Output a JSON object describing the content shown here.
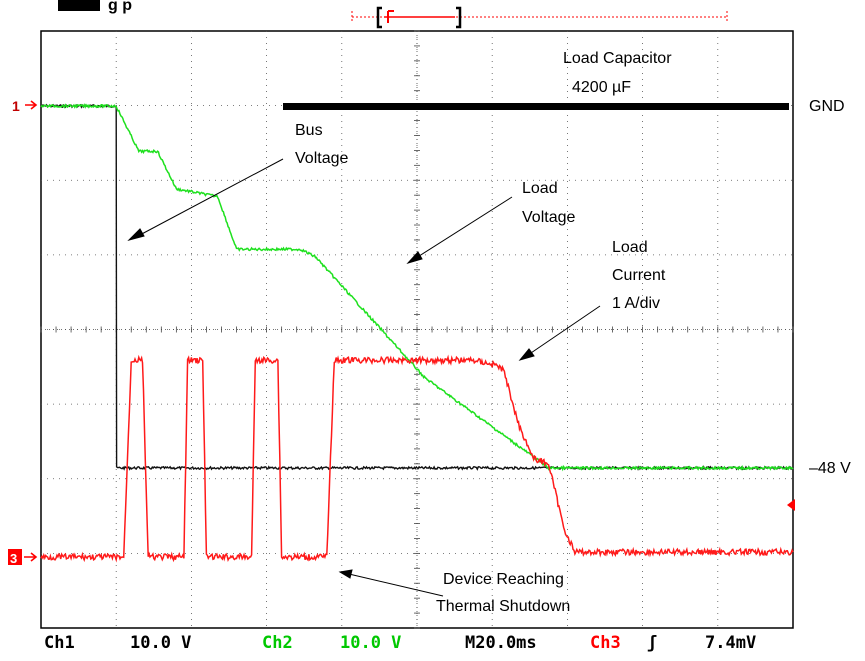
{
  "header": {
    "title_fragment": "g   p"
  },
  "chart_data": {
    "type": "line",
    "grid": true,
    "annotations": {
      "load_capacitor": [
        "Load Capacitor",
        "4200 µF"
      ],
      "bus_voltage": [
        "Bus",
        "Voltage"
      ],
      "load_voltage": [
        "Load",
        "Voltage"
      ],
      "load_current": [
        "Load",
        "Current",
        "1 A/div"
      ],
      "thermal": [
        "Device Reaching",
        "Thermal Shutdown"
      ],
      "gnd": "GND",
      "neg48": "–48 V"
    },
    "channel_markers": {
      "ch1": "1",
      "ch3": "3"
    },
    "readout": {
      "ch1_label": "Ch1",
      "ch1_scale": "10.0 V",
      "ch2_label": "Ch2",
      "ch2_scale": "10.0 V",
      "timebase": "M20.0ms",
      "ch3_label": "Ch3",
      "trigger_symbol": "ʃ",
      "trigger_level": "7.4mV"
    },
    "x_range_ms": [
      0,
      200
    ],
    "time_per_div_ms": 20,
    "series": [
      {
        "name": "Ch1",
        "color": "#000000",
        "unit": "V",
        "points": [
          [
            0,
            0
          ],
          [
            20,
            0
          ],
          [
            20.1,
            -48
          ],
          [
            200,
            -48
          ]
        ]
      },
      {
        "name": "Ch2",
        "color": "#00cc00",
        "unit": "V",
        "points": [
          [
            0,
            0
          ],
          [
            20,
            0
          ],
          [
            26,
            -6
          ],
          [
            31,
            -6
          ],
          [
            36,
            -11
          ],
          [
            47,
            -12
          ],
          [
            52,
            -19
          ],
          [
            69,
            -19
          ],
          [
            73,
            -20
          ],
          [
            102,
            -36
          ],
          [
            135,
            -48
          ],
          [
            200,
            -48
          ]
        ]
      },
      {
        "name": "Ch3",
        "color": "#ff0000",
        "unit": "div",
        "points": [
          [
            0,
            -3.8
          ],
          [
            22,
            -3.8
          ],
          [
            24,
            0.2
          ],
          [
            27,
            0.2
          ],
          [
            28.5,
            -3.8
          ],
          [
            38,
            -3.8
          ],
          [
            39,
            0.2
          ],
          [
            43,
            0.2
          ],
          [
            44,
            -3.8
          ],
          [
            56,
            -3.8
          ],
          [
            57,
            0.2
          ],
          [
            63,
            0.2
          ],
          [
            64,
            -3.8
          ],
          [
            76,
            -3.8
          ],
          [
            78,
            0.2
          ],
          [
            115,
            0.2
          ],
          [
            121,
            0.1
          ],
          [
            123,
            0
          ],
          [
            127,
            -1.1
          ],
          [
            131,
            -1.8
          ],
          [
            135,
            -1.9
          ],
          [
            139,
            -3.2
          ],
          [
            142,
            -3.7
          ],
          [
            200,
            -3.7
          ]
        ]
      }
    ]
  }
}
